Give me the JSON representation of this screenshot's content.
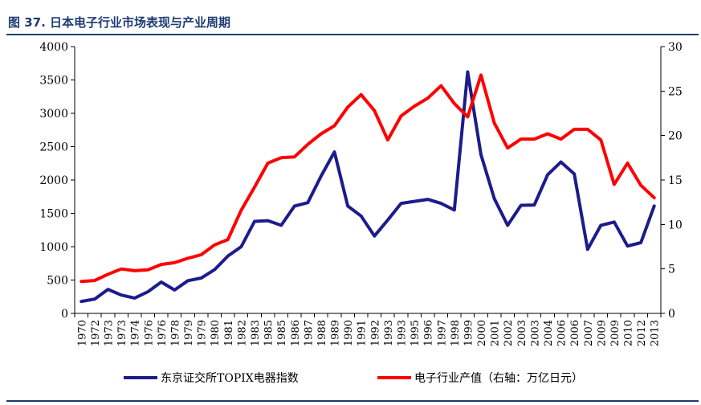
{
  "title": "图 37. 日本电子行业市场表现与产业周期",
  "chart_data": {
    "type": "line",
    "x": [
      "1970",
      "1971",
      "1972",
      "1973",
      "1974",
      "1975",
      "1976",
      "1977",
      "1978",
      "1979",
      "1980",
      "1981",
      "1982",
      "1983",
      "1984",
      "1985",
      "1986",
      "1987",
      "1988",
      "1989",
      "1990",
      "1991",
      "1992",
      "1993",
      "1994",
      "1995",
      "1996",
      "1997",
      "1998",
      "1999",
      "2000",
      "2001",
      "2002",
      "2003",
      "2004",
      "2005",
      "2006",
      "2007",
      "2008",
      "2009",
      "2010",
      "2011",
      "2012",
      "2013"
    ],
    "x_tick_labels": [
      "1970",
      "1972",
      "1973",
      "1973",
      "1974",
      "1976",
      "1976",
      "1978",
      "1979",
      "1979",
      "1980",
      "1981",
      "1982",
      "1983",
      "1985",
      "1985",
      "1986",
      "1987",
      "1988",
      "1989",
      "1990",
      "1991",
      "1992",
      "1993",
      "1993",
      "1995",
      "1996",
      "1997",
      "1998",
      "1999",
      "2000",
      "2001",
      "2002",
      "2003",
      "2003",
      "2004",
      "2006",
      "2006",
      "2007",
      "2009",
      "2009",
      "2010",
      "2012",
      "2013"
    ],
    "y_left_ticks": [
      "0",
      "500",
      "1000",
      "1500",
      "2000",
      "2500",
      "3000",
      "3500",
      "4000"
    ],
    "y_right_ticks": [
      "0",
      "5",
      "10",
      "15",
      "20",
      "25",
      "30"
    ],
    "ylim_left": [
      0,
      4000
    ],
    "ylim_right": [
      0,
      30
    ],
    "series": [
      {
        "name": "东京证交所TOPIX电器指数",
        "axis": "left",
        "color": "#1c1c8c",
        "values": [
          180,
          215,
          360,
          275,
          230,
          325,
          470,
          350,
          490,
          530,
          655,
          860,
          1000,
          1380,
          1390,
          1320,
          1610,
          1660,
          2060,
          2420,
          1610,
          1460,
          1160,
          1400,
          1650,
          1680,
          1710,
          1650,
          1550,
          3620,
          2380,
          1720,
          1320,
          1620,
          1625,
          2080,
          2270,
          2090,
          960,
          1320,
          1370,
          1010,
          1060,
          1610
        ]
      },
      {
        "name": "电子行业产值（右轴：万亿日元）",
        "axis": "right",
        "color": "#ff0000",
        "values": [
          3.6,
          3.7,
          4.4,
          5.0,
          4.8,
          4.9,
          5.5,
          5.7,
          6.2,
          6.6,
          7.7,
          8.3,
          11.6,
          14.2,
          16.9,
          17.5,
          17.6,
          19.0,
          20.2,
          21.1,
          23.2,
          24.6,
          22.8,
          19.5,
          22.2,
          23.3,
          24.2,
          25.6,
          23.6,
          22.1,
          26.8,
          21.4,
          18.6,
          19.6,
          19.6,
          20.2,
          19.6,
          20.7,
          20.7,
          19.5,
          14.5,
          16.9,
          14.4,
          13.0
        ]
      }
    ],
    "legend": "bottom",
    "grid": false
  }
}
